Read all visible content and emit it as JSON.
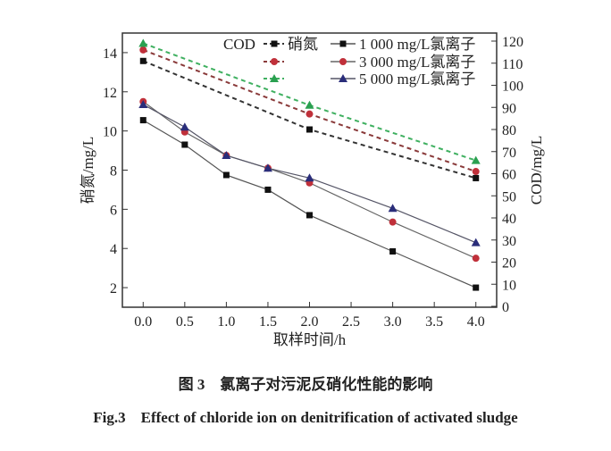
{
  "chart_data": {
    "type": "line",
    "x": [
      0.0,
      0.5,
      1.0,
      1.5,
      2.0,
      3.0,
      4.0
    ],
    "xlabel": "取样时间/h",
    "ylabel_left": "硝氮/mg/L",
    "ylabel_right": "COD/mg/L",
    "xticks": [
      "0.0",
      "0.5",
      "1.0",
      "1.5",
      "2.0",
      "2.5",
      "3.0",
      "3.5",
      "4.0"
    ],
    "yticks_left": [
      "2",
      "4",
      "6",
      "8",
      "10",
      "12",
      "14"
    ],
    "yticks_right": [
      "0",
      "10",
      "20",
      "30",
      "40",
      "50",
      "60",
      "70",
      "80",
      "90",
      "100",
      "110",
      "120"
    ],
    "xlim": [
      -0.25,
      4.25
    ],
    "ylim_left": [
      1,
      15
    ],
    "ylim_right": [
      0,
      128
    ],
    "grid": false,
    "legend_position": "top-right",
    "legend": {
      "cod_label": "COD",
      "nitrate_label": "硝氮"
    },
    "series": [
      {
        "name": "1 000 mg/L氯离子",
        "group": "硝氮",
        "axis": "left",
        "marker": "square",
        "color": "#111111",
        "line_color": "#555555",
        "x": [
          0,
          0.5,
          1,
          1.5,
          2,
          3,
          4
        ],
        "values": [
          10.55,
          9.3,
          7.75,
          7.0,
          5.7,
          3.85,
          2.0
        ]
      },
      {
        "name": "3 000 mg/L氯离子",
        "group": "硝氮",
        "axis": "left",
        "marker": "circle",
        "color": "#c0303a",
        "line_color": "#666666",
        "x": [
          0,
          0.5,
          1,
          1.5,
          2,
          3,
          4
        ],
        "values": [
          11.5,
          9.95,
          8.75,
          8.1,
          7.35,
          5.35,
          3.5
        ]
      },
      {
        "name": "5 000 mg/L氯离子",
        "group": "硝氮",
        "axis": "left",
        "marker": "triangle",
        "color": "#2a2d7a",
        "line_color": "#555566",
        "x": [
          0,
          0.5,
          1,
          1.5,
          2,
          3,
          4
        ],
        "values": [
          11.35,
          10.2,
          8.75,
          8.1,
          7.6,
          6.05,
          4.3
        ]
      },
      {
        "name": "1 000 mg/L氯离子",
        "group": "COD",
        "axis": "right",
        "marker": "square",
        "color": "#111111",
        "line_color": "#333333",
        "x": [
          0,
          2,
          4
        ],
        "values": [
          111,
          80,
          58
        ]
      },
      {
        "name": "3 000 mg/L氯离子",
        "group": "COD",
        "axis": "right",
        "marker": "circle",
        "color": "#c0303a",
        "line_color": "#8a3a3a",
        "x": [
          0,
          2,
          4
        ],
        "values": [
          116,
          87,
          61
        ]
      },
      {
        "name": "5 000 mg/L氯离子",
        "group": "COD",
        "axis": "right",
        "marker": "triangle",
        "color": "#2aa050",
        "line_color": "#3fb060",
        "x": [
          0,
          2,
          4
        ],
        "values": [
          119,
          91,
          66
        ]
      }
    ]
  },
  "caption": {
    "cn": "图 3　氯离子对污泥反硝化性能的影响",
    "en": "Fig.3　Effect of chloride ion on denitrification of activated sludge"
  }
}
